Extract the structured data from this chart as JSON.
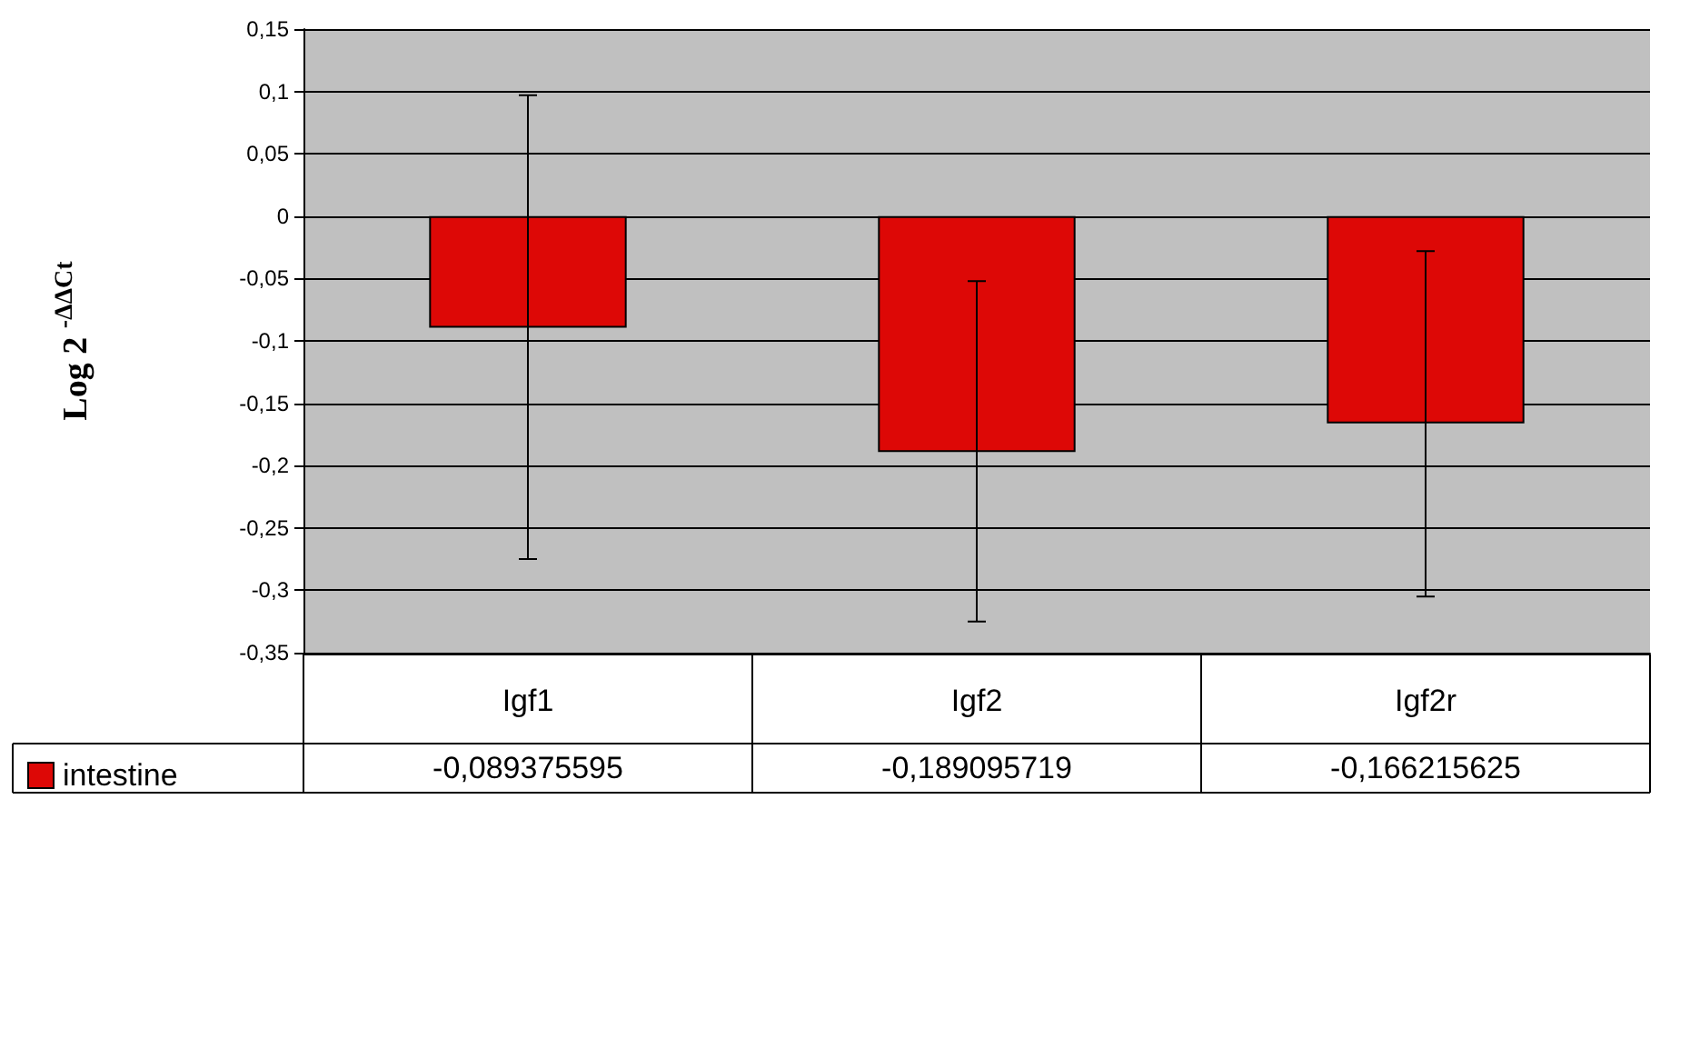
{
  "chart_data": {
    "type": "bar",
    "ylabel": "Log 2 $^{-ΔΔCt}$",
    "categories": [
      "Igf1",
      "Igf2",
      "Igf2r"
    ],
    "series": [
      {
        "name": "intestine",
        "color": "#dd0806",
        "values": [
          -0.089375595,
          -0.189095719,
          -0.166215625
        ],
        "errors": [
          [
            -0.275,
            0.097
          ],
          [
            -0.325,
            -0.052
          ],
          [
            -0.305,
            -0.028
          ]
        ],
        "value_labels": [
          "-0,089375595",
          "-0,189095719",
          "-0,166215625"
        ]
      }
    ],
    "ylim": [
      -0.35,
      0.15
    ],
    "yticks": [
      {
        "value": -0.35,
        "label": "-0,35"
      },
      {
        "value": -0.3,
        "label": "-0,3"
      },
      {
        "value": -0.25,
        "label": "-0,25"
      },
      {
        "value": -0.2,
        "label": "-0,2"
      },
      {
        "value": -0.15,
        "label": "-0,15"
      },
      {
        "value": -0.1,
        "label": "-0,1"
      },
      {
        "value": -0.05,
        "label": "-0,05"
      },
      0,
      {
        "value": 0.05,
        "label": "0,05"
      },
      {
        "value": 0.1,
        "label": "0,1"
      },
      {
        "value": 0.15,
        "label": "0,15"
      }
    ],
    "grid": "y",
    "legend": "bottom left"
  }
}
